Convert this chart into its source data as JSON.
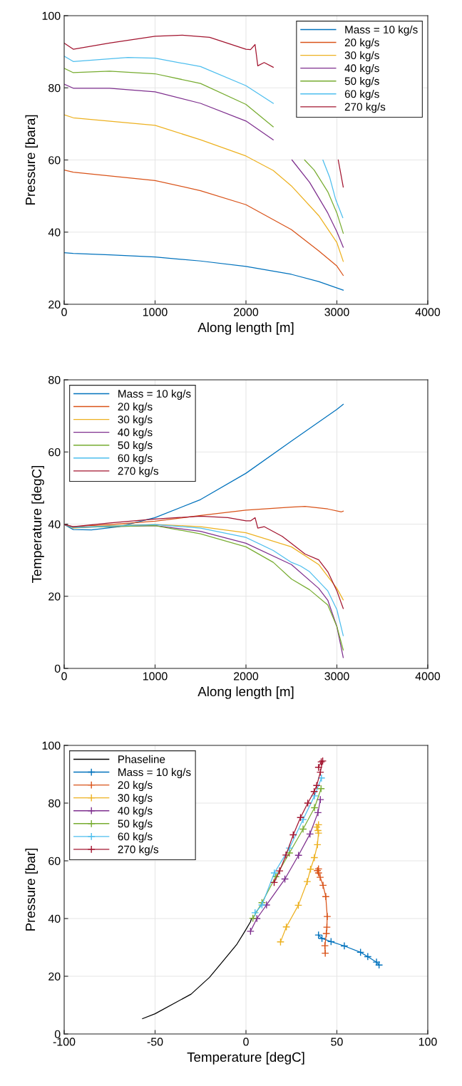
{
  "chart_data": [
    {
      "type": "line",
      "xlabel": "Along length [m]",
      "ylabel": "Pressure [bara]",
      "xlim": [
        0,
        4000
      ],
      "xticks": [
        0,
        1000,
        2000,
        3000,
        4000
      ],
      "ylim": [
        20,
        100
      ],
      "yticks": [
        20,
        40,
        60,
        80,
        100
      ],
      "grid": true,
      "legend": "top right",
      "series": [
        {
          "name": "Mass = 10 kg/s",
          "color": "#0072bd",
          "x": [
            0,
            100,
            500,
            1000,
            1500,
            2000,
            2500,
            2800,
            3070
          ],
          "values": [
            34.3,
            34.1,
            33.7,
            33.1,
            32.0,
            30.5,
            28.3,
            26.3,
            23.9
          ]
        },
        {
          "name": "20 kg/s",
          "color": "#d95319",
          "x": [
            0,
            100,
            1000,
            1500,
            2000,
            2500,
            2800,
            3000,
            3070
          ],
          "values": [
            57.2,
            56.6,
            54.3,
            51.5,
            47.6,
            40.7,
            34.8,
            30.6,
            28.0
          ]
        },
        {
          "name": "30 kg/s",
          "color": "#edb120",
          "x": [
            0,
            100,
            1000,
            1500,
            2000,
            2300,
            2500,
            2800,
            3000,
            3070
          ],
          "values": [
            72.5,
            71.7,
            69.6,
            65.6,
            61.1,
            57.1,
            52.8,
            44.6,
            37.1,
            31.9
          ]
        },
        {
          "name": "40 kg/s",
          "color": "#7e2f8e",
          "x": [
            0,
            100,
            500,
            1000,
            1500,
            2000,
            2300,
            2305,
            2506,
            2700,
            2900,
            3000,
            3070
          ],
          "values": [
            81.0,
            79.9,
            79.9,
            78.9,
            75.7,
            70.8,
            65.6,
            null,
            60.0,
            53.8,
            45.3,
            40.1,
            35.8
          ]
        },
        {
          "name": "50 kg/s",
          "color": "#77ac30",
          "x": [
            0,
            100,
            500,
            1000,
            1500,
            2000,
            2300,
            2305,
            2645,
            2750,
            2900,
            3000,
            3070
          ],
          "values": [
            85.4,
            84.2,
            84.6,
            83.9,
            81.2,
            75.4,
            69.2,
            null,
            60.0,
            57.2,
            51.2,
            45.3,
            39.7
          ]
        },
        {
          "name": "60 kg/s",
          "color": "#4dbeee",
          "x": [
            0,
            100,
            700,
            1000,
            1500,
            2000,
            2300,
            2305,
            2846,
            2922,
            2985,
            3065
          ],
          "values": [
            88.8,
            87.3,
            88.4,
            88.2,
            85.9,
            80.6,
            75.7,
            null,
            60.0,
            55.1,
            49.2,
            44.0
          ]
        },
        {
          "name": "270 kg/s",
          "color": "#a2142f",
          "x": [
            0,
            100,
            500,
            1000,
            1300,
            1600,
            2000,
            2050,
            2100,
            2130,
            2200,
            2300,
            2305,
            3015,
            3070
          ],
          "values": [
            92.4,
            90.7,
            92.4,
            94.3,
            94.6,
            94.0,
            90.7,
            90.6,
            92.0,
            86.1,
            87.0,
            85.7,
            null,
            60.0,
            52.5
          ]
        }
      ]
    },
    {
      "type": "line",
      "xlabel": "Along length [m]",
      "ylabel": "Temperature [degC]",
      "xlim": [
        0,
        4000
      ],
      "xticks": [
        0,
        1000,
        2000,
        3000,
        4000
      ],
      "ylim": [
        0,
        80
      ],
      "yticks": [
        0,
        20,
        40,
        60,
        80
      ],
      "grid": true,
      "legend": "top left",
      "series": [
        {
          "name": "Mass = 10 kg/s",
          "color": "#0072bd",
          "x": [
            0,
            100,
            300,
            600,
            1000,
            1500,
            2000,
            2500,
            3000,
            3070
          ],
          "values": [
            39.9,
            38.5,
            38.4,
            39.3,
            41.8,
            46.8,
            54.1,
            63.0,
            71.8,
            73.2
          ]
        },
        {
          "name": "20 kg/s",
          "color": "#d95319",
          "x": [
            0,
            100,
            500,
            1000,
            1500,
            2000,
            2500,
            2650,
            2900,
            3050,
            3070
          ],
          "values": [
            39.9,
            39.3,
            39.9,
            40.8,
            42.4,
            43.9,
            44.7,
            44.9,
            44.2,
            43.4,
            43.6
          ]
        },
        {
          "name": "30 kg/s",
          "color": "#edb120",
          "x": [
            0,
            100,
            500,
            1000,
            1500,
            2000,
            2500,
            2800,
            3000,
            3070
          ],
          "values": [
            39.9,
            38.9,
            39.6,
            39.9,
            39.3,
            37.6,
            33.7,
            28.8,
            22.2,
            19.0
          ]
        },
        {
          "name": "40 kg/s",
          "color": "#7e2f8e",
          "x": [
            0,
            100,
            1000,
            1500,
            2000,
            2500,
            2800,
            2900,
            3000,
            3070
          ],
          "values": [
            39.9,
            39.1,
            39.6,
            38.0,
            34.7,
            28.8,
            22.2,
            18.9,
            11.6,
            3.0
          ]
        },
        {
          "name": "50 kg/s",
          "color": "#77ac30",
          "x": [
            0,
            100,
            1000,
            1500,
            2000,
            2300,
            2500,
            2700,
            2900,
            3000,
            3070
          ],
          "values": [
            39.9,
            39.1,
            39.6,
            37.3,
            33.7,
            29.4,
            24.8,
            21.8,
            17.6,
            11.6,
            5.1
          ]
        },
        {
          "name": "60 kg/s",
          "color": "#4dbeee",
          "x": [
            0,
            100,
            1000,
            1500,
            2000,
            2300,
            2500,
            2600,
            2700,
            2900,
            3000,
            3070
          ],
          "values": [
            39.9,
            39.1,
            39.9,
            38.9,
            36.3,
            32.7,
            29.4,
            28.4,
            26.8,
            21.5,
            16.3,
            9.1
          ]
        },
        {
          "name": "270 kg/s",
          "color": "#a2142f",
          "x": [
            0,
            100,
            500,
            1000,
            1500,
            1800,
            2000,
            2050,
            2100,
            2130,
            2200,
            2400,
            2600,
            2650,
            2800,
            2900,
            3000,
            3070
          ],
          "values": [
            39.9,
            39.3,
            40.3,
            41.4,
            42.2,
            41.8,
            40.9,
            40.9,
            41.8,
            38.9,
            39.3,
            36.6,
            32.7,
            31.7,
            30.1,
            26.8,
            21.5,
            16.6
          ]
        }
      ]
    },
    {
      "type": "line",
      "xlabel": "Temperature [degC]",
      "ylabel": "Pressure [bar]",
      "xlim": [
        -100,
        100
      ],
      "xticks": [
        -100,
        -50,
        0,
        50,
        100
      ],
      "ylim": [
        0,
        100
      ],
      "yticks": [
        0,
        20,
        40,
        60,
        80,
        100
      ],
      "grid": true,
      "legend": "top left",
      "marker": "cross",
      "series": [
        {
          "name": "Phaseline",
          "color": "#000000",
          "marker": "none",
          "x": [
            -56.9,
            -50,
            -30.2,
            -20.1,
            -12.6,
            -5.0,
            -0.6,
            2.5,
            3.1
          ],
          "values": [
            5.3,
            7.0,
            13.8,
            19.6,
            25.3,
            31.1,
            35.6,
            38.9,
            40.1
          ]
        },
        {
          "name": "Mass = 10 kg/s",
          "color": "#0072bd",
          "x": [
            39.9,
            41.8,
            46.8,
            54.1,
            63.0,
            67,
            71.8,
            73.2
          ],
          "values": [
            34.3,
            33.1,
            32.0,
            30.5,
            28.3,
            26.8,
            24.9,
            23.9
          ]
        },
        {
          "name": "20 kg/s",
          "color": "#d95319",
          "x": [
            39.9,
            39.3,
            39.9,
            40.8,
            42.4,
            43.9,
            44.7,
            44.5,
            44.2,
            43.4,
            43.6
          ],
          "values": [
            57.2,
            56.6,
            55.8,
            54.3,
            51.5,
            47.6,
            40.7,
            37.0,
            34.8,
            30.6,
            28.0
          ]
        },
        {
          "name": "30 kg/s",
          "color": "#edb120",
          "x": [
            39.9,
            38.9,
            39.6,
            39.9,
            39.3,
            37.6,
            35.5,
            33.7,
            28.8,
            22.2,
            19.0
          ],
          "values": [
            72.5,
            71.7,
            70.5,
            69.6,
            65.6,
            61.1,
            57.1,
            52.8,
            44.6,
            37.1,
            31.9
          ]
        },
        {
          "name": "40 kg/s",
          "color": "#7e2f8e",
          "x": [
            40.9,
            39.6,
            35.2,
            28.9,
            21.4,
            11.3,
            6.0,
            2.5
          ],
          "values": [
            81.2,
            76.7,
            69.3,
            61.9,
            53.7,
            44.7,
            40.0,
            35.6
          ]
        },
        {
          "name": "50 kg/s",
          "color": "#77ac30",
          "x": [
            41.3,
            37.7,
            31.4,
            23.9,
            16.4,
            8.8,
            3.8
          ],
          "values": [
            85.0,
            78.4,
            71.0,
            62.7,
            54.5,
            45.5,
            40.1
          ]
        },
        {
          "name": "60 kg/s",
          "color": "#4dbeee",
          "x": [
            41.5,
            37.7,
            31.4,
            23.9,
            15.6,
            8.8,
            5.0
          ],
          "values": [
            88.7,
            82.5,
            74.3,
            64.4,
            55.8,
            44.7,
            42.0
          ]
        },
        {
          "name": "270 kg/s",
          "color": "#a2142f",
          "x": [
            39.9,
            41.4,
            42.2,
            40.9,
            38.9,
            37.5,
            34,
            30,
            26,
            22,
            18.5,
            15.5
          ],
          "values": [
            92.4,
            94.3,
            94.6,
            90.7,
            86.1,
            84,
            80,
            75,
            69,
            62,
            56.5,
            52.5
          ]
        }
      ]
    }
  ]
}
